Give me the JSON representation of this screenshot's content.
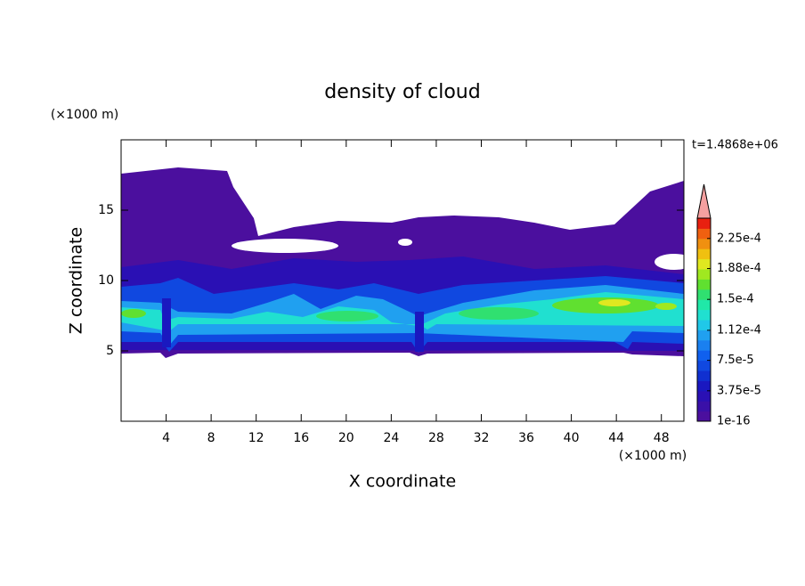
{
  "chart_data": {
    "type": "contour",
    "title": "density of cloud",
    "x_label": "X coordinate",
    "y_label": "Z coordinate",
    "x_unit": "(×1000 m)",
    "y_unit": "(×1000 m)",
    "time_label": "t=1.4868e+06",
    "xlim": [
      0,
      50
    ],
    "xticks": [
      4,
      8,
      12,
      16,
      20,
      24,
      28,
      32,
      36,
      40,
      44,
      48
    ],
    "ylim": [
      0,
      20
    ],
    "yticks": [
      5,
      10,
      15
    ],
    "colorbar": {
      "lim": [
        1e-16,
        0.00025
      ],
      "ticks": [
        {
          "value": 1e-16,
          "label": "1e-16"
        },
        {
          "value": 3.75e-05,
          "label": "3.75e-5"
        },
        {
          "value": 7.5e-05,
          "label": "7.5e-5"
        },
        {
          "value": 0.000112,
          "label": "1.12e-4"
        },
        {
          "value": 0.00015,
          "label": "1.5e-4"
        },
        {
          "value": 0.000188,
          "label": "1.88e-4"
        },
        {
          "value": 0.000225,
          "label": "2.25e-4"
        }
      ],
      "colors": [
        "#4b0f9e",
        "#3a10a8",
        "#2a10b4",
        "#1a18c0",
        "#1030d0",
        "#1048e0",
        "#1060ee",
        "#1a80f0",
        "#20a0f0",
        "#20c8e8",
        "#20e0d0",
        "#20e8a8",
        "#30e070",
        "#60e030",
        "#a0e820",
        "#e0e820",
        "#f0c010",
        "#f09010",
        "#f06010",
        "#e82010"
      ],
      "extend_color": "#f4a0a0"
    }
  }
}
